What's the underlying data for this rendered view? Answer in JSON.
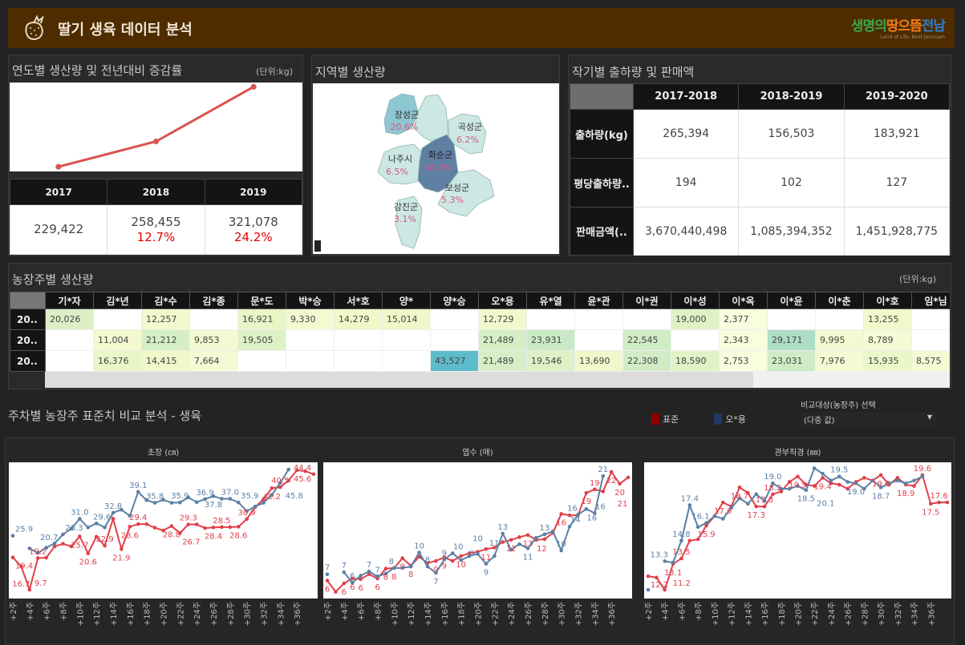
{
  "header": {
    "title": "딸기 생육 데이터 분석",
    "logo_text": "생명의땅으뜸전남",
    "logo_sub": "Land of Life, Best Jeonnam"
  },
  "yearly": {
    "title": "연도별 생산량 및 전년대비 증감률",
    "unit": "(단위:kg)",
    "columns": [
      {
        "year": "2017",
        "value": "229,422",
        "change": ""
      },
      {
        "year": "2018",
        "value": "258,455",
        "change": "12.7%"
      },
      {
        "year": "2019",
        "value": "321,078",
        "change": "24.2%"
      }
    ]
  },
  "region": {
    "title": "지역별 생산량",
    "areas": [
      {
        "name": "장성군",
        "pct": "20.6%",
        "color": "#8ec6d2"
      },
      {
        "name": "곡성군",
        "pct": "6.2%",
        "color": "#cde8e3"
      },
      {
        "name": "나주시",
        "pct": "6.5%",
        "color": "#cde8e3"
      },
      {
        "name": "화순군",
        "pct": "58.3%",
        "color": "#5f7fa3"
      },
      {
        "name": "보성군",
        "pct": "5.3%",
        "color": "#cde8e3"
      },
      {
        "name": "강진군",
        "pct": "3.1%",
        "color": "#cde8e3"
      }
    ]
  },
  "season": {
    "title": "작기별 출하량 및 판매액",
    "columns": [
      "2017-2018",
      "2018-2019",
      "2019-2020"
    ],
    "rows": [
      {
        "label": "출하량(kg)",
        "values": [
          "265,394",
          "156,503",
          "183,921"
        ]
      },
      {
        "label": "평당출하량..",
        "values": [
          "194",
          "102",
          "127"
        ]
      },
      {
        "label": "판매금액(..",
        "values": [
          "3,670,440,498",
          "1,085,394,352",
          "1,451,928,775"
        ]
      }
    ]
  },
  "farm": {
    "title": "농장주별 생산량",
    "unit": "(단위:kg)",
    "columns": [
      "기*자",
      "김*년",
      "김*수",
      "김*종",
      "문*도",
      "박*승",
      "서*호",
      "양*",
      "양*승",
      "오*용",
      "유*열",
      "윤*관",
      "이*권",
      "이*성",
      "이*옥",
      "이*윤",
      "이*춘",
      "이*호",
      "임*님"
    ],
    "rows": [
      {
        "label": "20..",
        "values": [
          "20,026",
          "",
          "12,257",
          "",
          "16,921",
          "9,330",
          "14,279",
          "15,014",
          "",
          "12,729",
          "",
          "",
          "",
          "19,000",
          "2,377",
          "",
          "",
          "13,255",
          ""
        ]
      },
      {
        "label": "20..",
        "values": [
          "",
          "11,004",
          "21,212",
          "9,853",
          "19,505",
          "",
          "",
          "",
          "",
          "21,489",
          "23,931",
          "",
          "22,545",
          "",
          "2,343",
          "29,171",
          "9,995",
          "8,789",
          ""
        ]
      },
      {
        "label": "20..",
        "values": [
          "",
          "16,376",
          "14,415",
          "7,664",
          "",
          "",
          "",
          "",
          "43,527",
          "21,489",
          "19,546",
          "13,690",
          "22,308",
          "18,590",
          "2,753",
          "23,031",
          "7,976",
          "15,935",
          "8,575"
        ]
      }
    ]
  },
  "compare": {
    "title": "주차별 농장주 표준치 비교 분석 - 생육",
    "legend": [
      {
        "label": "표준",
        "color": "#8b0000"
      },
      {
        "label": "오*용",
        "color": "#1f3864"
      }
    ],
    "filter": {
      "label": "비교대상(농장주) 선택",
      "value": "(다중 값)"
    }
  },
  "chart_data": [
    {
      "type": "line",
      "title": "",
      "categories": [
        "2017",
        "2018",
        "2019"
      ],
      "values": [
        229422,
        258455,
        321078
      ],
      "ylim": [
        224000,
        326000
      ],
      "color": "#d9534f"
    },
    {
      "type": "line",
      "title": "초장 (㎝)",
      "x": [
        2,
        3,
        4,
        5,
        6,
        7,
        8,
        9,
        10,
        11,
        12,
        13,
        14,
        15,
        16,
        17,
        18,
        19,
        20,
        21,
        22,
        23,
        24,
        25,
        26,
        27,
        28,
        29,
        30,
        31,
        32,
        33,
        34,
        35,
        36,
        37,
        38
      ],
      "xtick_labels": [
        "+2주",
        "+4주",
        "+6주",
        "+8주",
        "+10주",
        "+12주",
        "+14주",
        "+16주",
        "+18주",
        "+20주",
        "+22주",
        "+24주",
        "+26주",
        "+28주",
        "+30주",
        "+32주",
        "+34주",
        "+36주"
      ],
      "ylim": [
        8,
        47
      ],
      "decimals": 1,
      "grid": false,
      "series": [
        {
          "name": "표준",
          "color": "#e0404a",
          "values": [
            19.4,
            16.7,
            9.7,
            19.2,
            19.3,
            22.7,
            23.5,
            22.7,
            25.7,
            20.6,
            25.6,
            22.9,
            31.0,
            21.9,
            28.6,
            29.4,
            29.4,
            28.3,
            27.5,
            28.8,
            26.7,
            29.3,
            29.3,
            28.2,
            28.4,
            28.5,
            28.5,
            28.6,
            30.9,
            34.5,
            36.9,
            40.2,
            40.5,
            42.5,
            45.6,
            45.3,
            44.4
          ],
          "labeled_x": [
            2,
            3,
            4,
            5,
            10,
            11,
            13,
            15,
            16,
            17,
            21,
            22,
            23,
            26,
            27,
            29,
            30,
            33,
            34,
            36,
            38
          ]
        },
        {
          "name": "오*용",
          "color": "#5b7fa6",
          "values": [
            25.9,
            null,
            22.1,
            20.7,
            22.3,
            23.6,
            26.3,
            28.0,
            31.0,
            28.4,
            29.6,
            28.4,
            32.8,
            33.7,
            31.9,
            39.1,
            36.6,
            35.8,
            36.7,
            35.8,
            35.9,
            37.4,
            36.0,
            36.9,
            37.8,
            37.0,
            37.0,
            35.9,
            33.3,
            34.7,
            35.8,
            38.2,
            41.8,
            45.8,
            null,
            null,
            null
          ],
          "labeled_x": [
            2,
            5,
            8,
            10,
            12,
            14,
            17,
            19,
            22,
            25,
            26,
            28,
            29,
            35
          ]
        }
      ]
    },
    {
      "type": "line",
      "title": "엽수 (매)",
      "x": [
        2,
        3,
        4,
        5,
        6,
        7,
        8,
        9,
        10,
        11,
        12,
        13,
        14,
        15,
        16,
        17,
        18,
        19,
        20,
        21,
        22,
        23,
        24,
        25,
        26,
        27,
        28,
        29,
        30,
        31,
        32,
        33,
        34,
        35,
        36,
        37,
        38
      ],
      "xtick_labels": [
        "+2주",
        "+4주",
        "+6주",
        "+8주",
        "+10주",
        "+12주",
        "+14주",
        "+16주",
        "+18주",
        "+20주",
        "+22주",
        "+24주",
        "+26주",
        "+28주",
        "+30주",
        "+32주",
        "+34주",
        "+36주"
      ],
      "ylim": [
        4,
        22.5
      ],
      "decimals": 0,
      "grid": false,
      "series": [
        {
          "name": "표준",
          "color": "#e0404a",
          "values": [
            6.1,
            4.5,
            5.7,
            6.4,
            6.3,
            7.0,
            6.4,
            7.8,
            7.9,
            9.3,
            8.2,
            9.5,
            8.6,
            8.9,
            9.4,
            8.9,
            9.6,
            10.0,
            10.2,
            10.6,
            10.8,
            11.6,
            11.9,
            12.3,
            12.6,
            11.9,
            12.0,
            12.9,
            15.6,
            15.4,
            15.4,
            18.6,
            19.1,
            18.8,
            21.6,
            19.9,
            20.8
          ],
          "labeled_x": [
            2,
            4,
            5,
            6,
            8,
            9,
            10,
            11,
            12,
            15,
            16,
            18,
            21,
            24,
            26,
            27,
            30,
            33,
            34,
            36,
            37,
            38
          ]
        },
        {
          "name": "오*용",
          "color": "#5b7fa6",
          "values": [
            7.0,
            null,
            7.3,
            5.8,
            6.8,
            7.4,
            6.7,
            7.1,
            7.9,
            7.9,
            8.1,
            10.1,
            8.1,
            7.2,
            9.1,
            10.0,
            9.0,
            9.6,
            9.9,
            8.5,
            9.6,
            12.8,
            10.5,
            11.3,
            10.7,
            12.2,
            12.7,
            13.1,
            10.4,
            13.8,
            15.5,
            16.3,
            15.7,
            21.0,
            null,
            null,
            null
          ],
          "labeled_x": [
            2,
            4,
            5,
            7,
            8,
            11,
            13,
            14,
            15,
            16,
            17,
            18,
            20,
            21,
            23,
            24,
            26,
            28,
            30,
            31,
            32,
            33,
            34,
            35
          ]
        }
      ]
    },
    {
      "type": "line",
      "title": "관부직경 (㎜)",
      "x": [
        2,
        3,
        4,
        5,
        6,
        7,
        8,
        9,
        10,
        11,
        12,
        13,
        14,
        15,
        16,
        17,
        18,
        19,
        20,
        21,
        22,
        23,
        24,
        25,
        26,
        27,
        28,
        29,
        30,
        31,
        32,
        33,
        34,
        35,
        36,
        37,
        38
      ],
      "xtick_labels": [
        "+2주",
        "+4주",
        "+6주",
        "+8주",
        "+10주",
        "+12주",
        "+14주",
        "+16주",
        "+18주",
        "+20주",
        "+22주",
        "+24주",
        "+26주",
        "+28주",
        "+30주",
        "+32주",
        "+34주",
        "+36주"
      ],
      "ylim": [
        10.8,
        20.3
      ],
      "decimals": 1,
      "grid": false,
      "series": [
        {
          "name": "표준",
          "color": "#e0404a",
          "values": [
            12.2,
            12.1,
            11.2,
            13.1,
            13.5,
            14.8,
            14.9,
            15.9,
            16.6,
            17.6,
            17.3,
            18.7,
            18.3,
            17.3,
            17.3,
            18.2,
            18.4,
            19.1,
            19.5,
            18.9,
            18.8,
            19.4,
            19.0,
            18.9,
            18.6,
            19.1,
            19.4,
            19.2,
            19.6,
            18.9,
            19.4,
            18.9,
            18.8,
            19.6,
            17.5,
            17.6,
            17.6
          ],
          "labeled_x": [
            2,
            4,
            5,
            6,
            9,
            11,
            13,
            15,
            16,
            17,
            20,
            23,
            30,
            33,
            35,
            36,
            37
          ]
        },
        {
          "name": "오*용",
          "color": "#5b7fa6",
          "values": [
            11.2,
            null,
            13.3,
            13.2,
            14.8,
            17.4,
            15.8,
            16.1,
            16.6,
            16.4,
            17.2,
            17.9,
            17.5,
            18.2,
            17.7,
            19.0,
            18.6,
            18.6,
            18.8,
            18.5,
            20.1,
            19.7,
            19.2,
            19.5,
            19.1,
            19.0,
            18.6,
            19.2,
            18.7,
            19.0,
            19.2,
            19.0,
            19.2,
            19.5,
            null,
            null,
            null
          ],
          "labeled_x": [
            4,
            6,
            7,
            9,
            17,
            21,
            22,
            25,
            27,
            30
          ]
        }
      ]
    }
  ]
}
